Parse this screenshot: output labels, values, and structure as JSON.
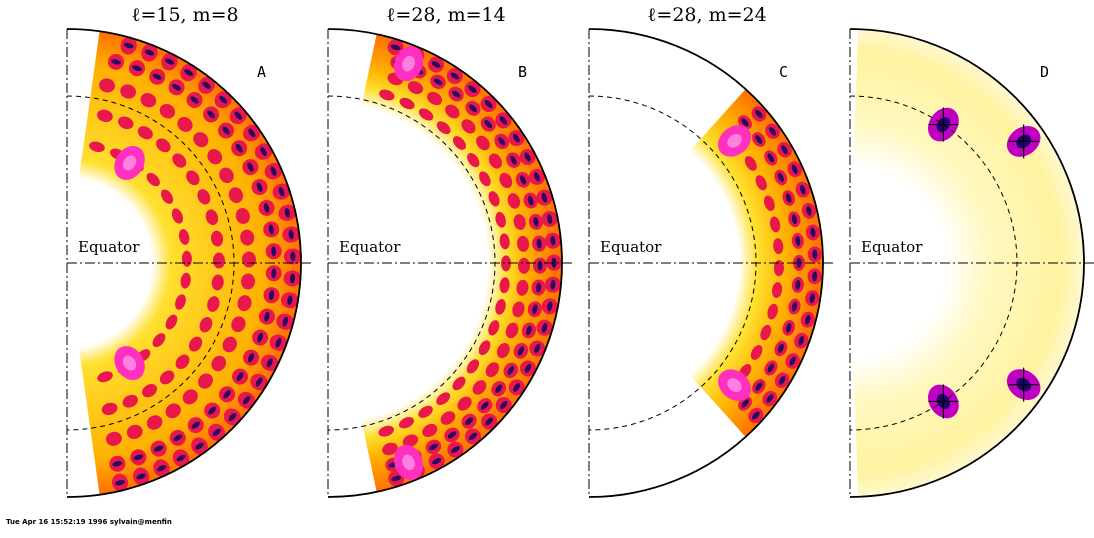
{
  "panels": [
    {
      "title": "ℓ=15,  m=8",
      "label": "A",
      "equator": "Equator"
    },
    {
      "title": "ℓ=28,  m=14",
      "label": "B",
      "equator": "Equator"
    },
    {
      "title": "ℓ=28,  m=24",
      "label": "C",
      "equator": "Equator"
    },
    {
      "title": "",
      "label": "D",
      "equator": "Equator"
    }
  ],
  "footer": "Tue Apr 16 15:52:19 1996 sylvain@menfin"
}
